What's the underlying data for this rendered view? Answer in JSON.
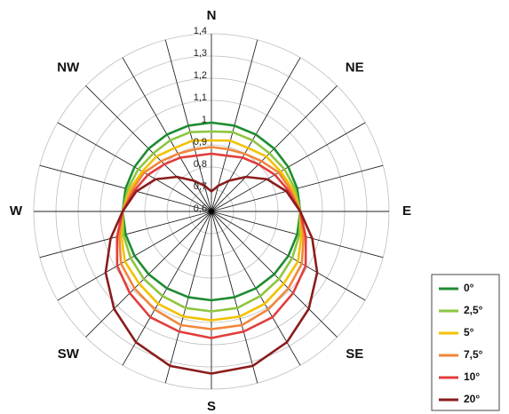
{
  "chart_data": {
    "type": "polar",
    "categories": [
      "N",
      null,
      null,
      "NE",
      null,
      null,
      "E",
      null,
      null,
      "SE",
      null,
      null,
      "S",
      null,
      null,
      "SW",
      null,
      null,
      "W",
      null,
      null,
      "NW",
      null,
      null
    ],
    "ylim": [
      0.6,
      1.4
    ],
    "yticks": [
      {
        "value": 0.6,
        "label": "0,6"
      },
      {
        "value": 0.7,
        "label": "0,7"
      },
      {
        "value": 0.8,
        "label": "0,8"
      },
      {
        "value": 0.9,
        "label": "0,9"
      },
      1,
      {
        "value": 1.1,
        "label": "1,1"
      },
      {
        "value": 1.2,
        "label": "1,2"
      },
      {
        "value": 1.3,
        "label": "1,3"
      },
      {
        "value": 1.4,
        "label": "1,4"
      }
    ],
    "grid": true,
    "legend": "bottom-right",
    "series": [
      {
        "name": "0°",
        "color": "#1e8c32",
        "values": [
          1,
          1,
          1,
          1,
          1,
          1,
          1,
          1,
          1,
          1,
          1,
          1,
          1,
          1,
          1,
          1,
          1,
          1,
          1,
          1,
          1,
          1,
          1,
          1
        ]
      },
      {
        "name": "2,5°",
        "color": "#8dc63f",
        "values": [
          0.96,
          0.97,
          0.97,
          0.97,
          0.98,
          0.99,
          1.0,
          1.01,
          1.02,
          1.03,
          1.04,
          1.05,
          1.05,
          1.05,
          1.04,
          1.03,
          1.02,
          1.01,
          1.0,
          0.99,
          0.98,
          0.97,
          0.97,
          0.97
        ]
      },
      {
        "name": "5°",
        "color": "#f2c200",
        "values": [
          0.92,
          0.93,
          0.93,
          0.95,
          0.96,
          0.98,
          1.0,
          1.02,
          1.05,
          1.06,
          1.08,
          1.09,
          1.09,
          1.09,
          1.08,
          1.06,
          1.05,
          1.02,
          1.0,
          0.98,
          0.96,
          0.95,
          0.93,
          0.93
        ]
      },
      {
        "name": "7,5°",
        "color": "#f0873c",
        "values": [
          0.89,
          0.89,
          0.9,
          0.92,
          0.95,
          0.97,
          1.0,
          1.03,
          1.07,
          1.09,
          1.11,
          1.13,
          1.13,
          1.13,
          1.11,
          1.09,
          1.07,
          1.03,
          1.0,
          0.97,
          0.95,
          0.92,
          0.9,
          0.89
        ]
      },
      {
        "name": "10°",
        "color": "#e23c3c",
        "values": [
          0.86,
          0.86,
          0.88,
          0.9,
          0.93,
          0.96,
          1.0,
          1.04,
          1.09,
          1.12,
          1.15,
          1.16,
          1.17,
          1.16,
          1.15,
          1.12,
          1.09,
          1.04,
          1.0,
          0.96,
          0.93,
          0.9,
          0.88,
          0.86
        ]
      },
      {
        "name": "20°",
        "color": "#8b1c1c",
        "values": [
          0.69,
          0.72,
          0.76,
          0.82,
          0.89,
          0.95,
          1.0,
          1.07,
          1.15,
          1.22,
          1.28,
          1.32,
          1.33,
          1.32,
          1.28,
          1.22,
          1.15,
          1.07,
          1.0,
          0.95,
          0.89,
          0.82,
          0.76,
          0.72
        ]
      }
    ]
  }
}
